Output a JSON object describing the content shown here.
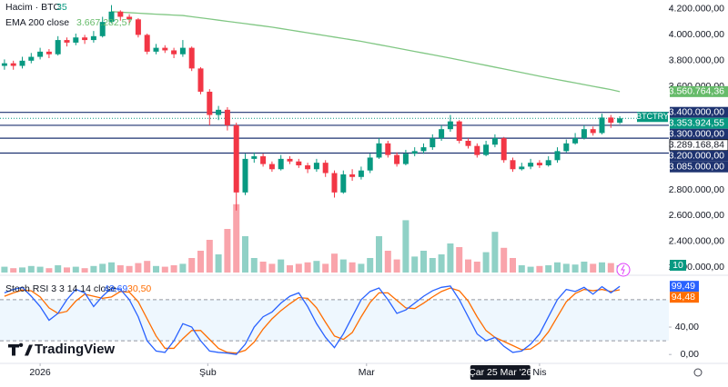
{
  "chart_data": {
    "type": "candlestick",
    "symbol_badge": "BTCTRY",
    "volume_legend": {
      "name": "Hacim · BTC",
      "value": "35"
    },
    "ema_legend": {
      "name": "EMA 200 close",
      "value": "3.667.282,57"
    },
    "stoch_legend": {
      "name": "Stoch RSI 3 3 14 14 close",
      "k": "43,69",
      "d": "30,50"
    },
    "brand": "TradingView",
    "up_color": "#089981",
    "down_color": "#f23645",
    "xlim": [
      -0.5,
      74.5
    ],
    "xticks": [
      {
        "value": 4,
        "label": "2026"
      },
      {
        "value": 22.8,
        "label": "Şub"
      },
      {
        "value": 40.6,
        "label": "Mar"
      },
      {
        "value": 60,
        "label": "Nis"
      }
    ],
    "crosshair_x": {
      "value": 55.6,
      "label": "Çar 25 Mar '26"
    },
    "ylim": [
      2160000,
      4270000
    ],
    "yticks": [
      {
        "value": 4200000,
        "label": "4.200.000,00"
      },
      {
        "value": 4000000,
        "label": "4.000.000,00"
      },
      {
        "value": 3800000,
        "label": "3.800.000,00"
      },
      {
        "value": 3600000,
        "label": "3.600.000,00"
      },
      {
        "value": 2800000,
        "label": "2.800.000,00"
      },
      {
        "value": 2600000,
        "label": "2.600.000,00"
      },
      {
        "value": 2400000,
        "label": "2.400.000,00"
      },
      {
        "value": 2200000,
        "label": "2.200.000,00"
      }
    ],
    "open": [
      3760000,
      3780000,
      3760000,
      3800000,
      3830000,
      3870000,
      3850000,
      3960000,
      3940000,
      3980000,
      3960000,
      3990000,
      4100000,
      4180000,
      4140000,
      4120000,
      4000000,
      3870000,
      3900000,
      3880000,
      3850000,
      3900000,
      3740000,
      3560000,
      3380000,
      3420000,
      3300000,
      2780000,
      3040000,
      3060000,
      3000000,
      2960000,
      3040000,
      3020000,
      2990000,
      2960000,
      3010000,
      2930000,
      2780000,
      2920000,
      2900000,
      2950000,
      3050000,
      3160000,
      3070000,
      3000000,
      3080000,
      3100000,
      3130000,
      3200000,
      3270000,
      3330000,
      3180000,
      3140000,
      3070000,
      3150000,
      3200000,
      3030000,
      2960000,
      2980000,
      3010000,
      2990000,
      3030000,
      3100000,
      3160000,
      3200000,
      3270000,
      3240000,
      3360000,
      3320000
    ],
    "high": [
      3810000,
      3800000,
      3830000,
      3860000,
      3900000,
      3890000,
      3990000,
      3980000,
      4010000,
      4000000,
      4030000,
      4140000,
      4230000,
      4190000,
      4160000,
      4130000,
      4010000,
      3930000,
      3920000,
      3900000,
      3960000,
      3910000,
      3750000,
      3580000,
      3450000,
      3440000,
      3320000,
      3080000,
      3090000,
      3080000,
      3020000,
      3070000,
      3060000,
      3040000,
      3010000,
      3040000,
      3030000,
      2950000,
      2950000,
      2960000,
      2980000,
      3080000,
      3200000,
      3180000,
      3090000,
      3110000,
      3130000,
      3160000,
      3230000,
      3300000,
      3380000,
      3340000,
      3200000,
      3160000,
      3180000,
      3230000,
      3210000,
      3050000,
      3010000,
      3040000,
      3030000,
      3060000,
      3130000,
      3190000,
      3240000,
      3300000,
      3290000,
      3390000,
      3380000,
      3370000
    ],
    "low": [
      3730000,
      3730000,
      3740000,
      3780000,
      3810000,
      3820000,
      3840000,
      3910000,
      3920000,
      3930000,
      3940000,
      3980000,
      4090000,
      4110000,
      4090000,
      3980000,
      3850000,
      3850000,
      3860000,
      3820000,
      3830000,
      3720000,
      3540000,
      3300000,
      3340000,
      3260000,
      2640000,
      2760000,
      3010000,
      2980000,
      2940000,
      2950000,
      3000000,
      2970000,
      2930000,
      2940000,
      2900000,
      2740000,
      2770000,
      2870000,
      2880000,
      2930000,
      3040000,
      3050000,
      2980000,
      2990000,
      3060000,
      3080000,
      3110000,
      3180000,
      3250000,
      3160000,
      3120000,
      3050000,
      3060000,
      3130000,
      3010000,
      2940000,
      2950000,
      2960000,
      2970000,
      2980000,
      3010000,
      3090000,
      3150000,
      3190000,
      3220000,
      3230000,
      3280000,
      3310000
    ],
    "close": [
      3780000,
      3760000,
      3800000,
      3830000,
      3870000,
      3850000,
      3960000,
      3940000,
      3980000,
      3960000,
      3990000,
      4100000,
      4180000,
      4140000,
      4120000,
      4000000,
      3870000,
      3900000,
      3880000,
      3850000,
      3900000,
      3740000,
      3560000,
      3380000,
      3420000,
      3300000,
      2780000,
      3040000,
      3060000,
      3000000,
      2960000,
      3040000,
      3020000,
      2990000,
      2960000,
      3010000,
      2930000,
      2780000,
      2920000,
      2900000,
      2950000,
      3050000,
      3160000,
      3070000,
      3000000,
      3080000,
      3100000,
      3130000,
      3200000,
      3270000,
      3330000,
      3180000,
      3140000,
      3070000,
      3150000,
      3200000,
      3030000,
      2960000,
      2980000,
      3010000,
      2990000,
      3030000,
      3100000,
      3160000,
      3200000,
      3270000,
      3240000,
      3360000,
      3320000,
      3353924.55
    ],
    "price_badge": {
      "value": 3353924.55,
      "label": "3.353.924,55"
    },
    "other_badge": {
      "value": 3289168.84,
      "label": "3.289.168,84"
    },
    "levels": [
      {
        "value": 3400000,
        "label": "3.400.000,00"
      },
      {
        "value": 3300000,
        "label": "3.300.000,00"
      },
      {
        "value": 3200000,
        "label": "3.200.000,00"
      },
      {
        "value": 3085000,
        "label": "3.085.000,00"
      }
    ],
    "level_color": "#1e3370",
    "volume": [
      8,
      6,
      7,
      9,
      8,
      6,
      10,
      7,
      8,
      6,
      9,
      12,
      14,
      10,
      9,
      13,
      16,
      9,
      8,
      10,
      12,
      20,
      30,
      45,
      25,
      60,
      94,
      50,
      20,
      15,
      12,
      18,
      10,
      12,
      14,
      16,
      12,
      26,
      18,
      14,
      12,
      20,
      50,
      30,
      18,
      72,
      22,
      30,
      20,
      25,
      40,
      35,
      18,
      15,
      28,
      56,
      34,
      20,
      10,
      8,
      9,
      10,
      14,
      12,
      11,
      15,
      12,
      14,
      13,
      10
    ],
    "volume_ylim": [
      0,
      375
    ],
    "ema": {
      "color": "#81c784",
      "badge": {
        "value": 3560764.36,
        "label": "3.560.764,36"
      },
      "values": [
        null,
        null,
        null,
        null,
        null,
        null,
        null,
        null,
        null,
        null,
        null,
        null,
        4180000,
        4176000,
        4172000,
        4168000,
        4164000,
        4160000,
        4157000,
        4153000,
        4150000,
        4141000,
        4132000,
        4123000,
        4114000,
        4105000,
        4096000,
        4087000,
        4078000,
        4069000,
        4060000,
        4049000,
        4038000,
        4027000,
        4016000,
        4005000,
        3994000,
        3983000,
        3972000,
        3961000,
        3950000,
        3937000,
        3924000,
        3911000,
        3898000,
        3885000,
        3872000,
        3859000,
        3846000,
        3833000,
        3820000,
        3806000,
        3792000,
        3778000,
        3764000,
        3750000,
        3736000,
        3722000,
        3708000,
        3694000,
        3680000,
        3667000,
        3654000,
        3641000,
        3628000,
        3615000,
        3602000,
        3589000,
        3576000,
        3560764.36
      ]
    },
    "stoch": {
      "ylim": [
        -13,
        113
      ],
      "yticks": [
        {
          "value": 40,
          "label": "40,00"
        },
        {
          "value": 0,
          "label": "0,00"
        }
      ],
      "bands": [
        20,
        80
      ],
      "k": {
        "color": "#2962ff",
        "label": "99,49",
        "values": [
          90,
          95,
          98,
          85,
          70,
          50,
          60,
          80,
          95,
          90,
          70,
          85,
          97,
          95,
          80,
          55,
          20,
          5,
          3,
          20,
          45,
          40,
          20,
          5,
          3,
          2,
          0,
          15,
          40,
          55,
          62,
          75,
          85,
          90,
          70,
          45,
          25,
          10,
          30,
          55,
          80,
          92,
          97,
          80,
          60,
          65,
          75,
          85,
          93,
          98,
          100,
          80,
          55,
          30,
          20,
          25,
          12,
          3,
          5,
          15,
          30,
          55,
          80,
          95,
          92,
          98,
          88,
          99,
          90,
          99.49
        ]
      },
      "d": {
        "color": "#ff6d00",
        "label": "94,48",
        "values": [
          85,
          90,
          94,
          93,
          84,
          68,
          60,
          63,
          78,
          88,
          85,
          82,
          84,
          92,
          91,
          77,
          52,
          27,
          9,
          9,
          23,
          35,
          35,
          22,
          9,
          3,
          2,
          6,
          18,
          37,
          52,
          64,
          74,
          83,
          82,
          68,
          47,
          27,
          22,
          32,
          55,
          76,
          90,
          90,
          79,
          68,
          67,
          75,
          84,
          92,
          97,
          93,
          78,
          55,
          35,
          25,
          19,
          13,
          7,
          8,
          17,
          33,
          55,
          77,
          89,
          95,
          93,
          95,
          92,
          94.48
        ]
      }
    }
  }
}
